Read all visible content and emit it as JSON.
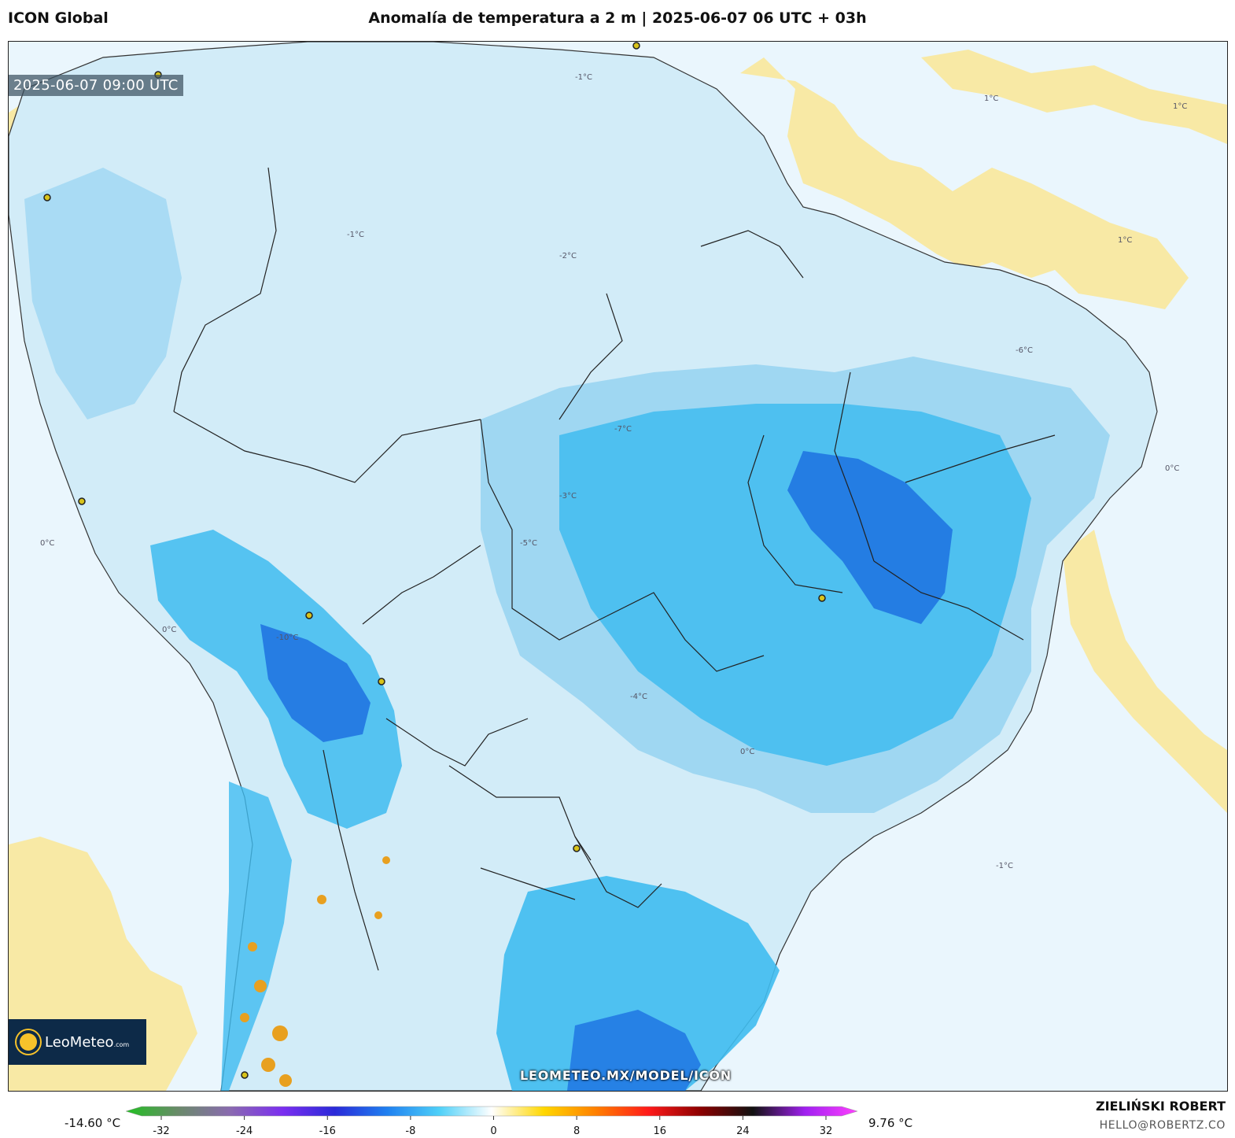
{
  "header": {
    "model": "ICON Global",
    "title": "Anomalía de temperatura a 2 m | 2025-06-07 06 UTC + 03h"
  },
  "map": {
    "valid_time": "2025-06-07 09:00 UTC",
    "watermark": "LEOMETEO.MX/MODEL/ICON",
    "contour_labels": [
      "1°C",
      "-1°C",
      "-2°C",
      "-3°C",
      "-4°C",
      "-5°C",
      "-6°C",
      "-7°C",
      "-10°C",
      "0°C"
    ],
    "colors": {
      "ocean_neutral": "#eaf6fd",
      "warm_anomaly": "#f8e9a5",
      "slight_cold": "#d2ecf8",
      "cold": "#9fd7f2",
      "colder": "#3fbcf0",
      "coldest": "#1a6be0",
      "hot_spots": "#e8a020"
    }
  },
  "logo": {
    "brand": "LeoMeteo",
    "suffix": ".com"
  },
  "colorbar": {
    "min_label": "-14.60 °C",
    "max_label": "9.76 °C",
    "ticks": [
      "-32",
      "-24",
      "-16",
      "-8",
      "0",
      "8",
      "16",
      "24",
      "32"
    ],
    "stops": [
      "#22c022",
      "#6a8a6a",
      "#8a6ab0",
      "#7b2ef0",
      "#2a2ad8",
      "#1f80f0",
      "#4fd0f8",
      "#ffffff",
      "#ffd700",
      "#ff7f00",
      "#ff1a1a",
      "#8b0000",
      "#111111",
      "#a020f0",
      "#ff40ff"
    ]
  },
  "credits": {
    "author": "ZIELIŃSKI ROBERT",
    "email": "HELLO@ROBERTZ.CO"
  }
}
